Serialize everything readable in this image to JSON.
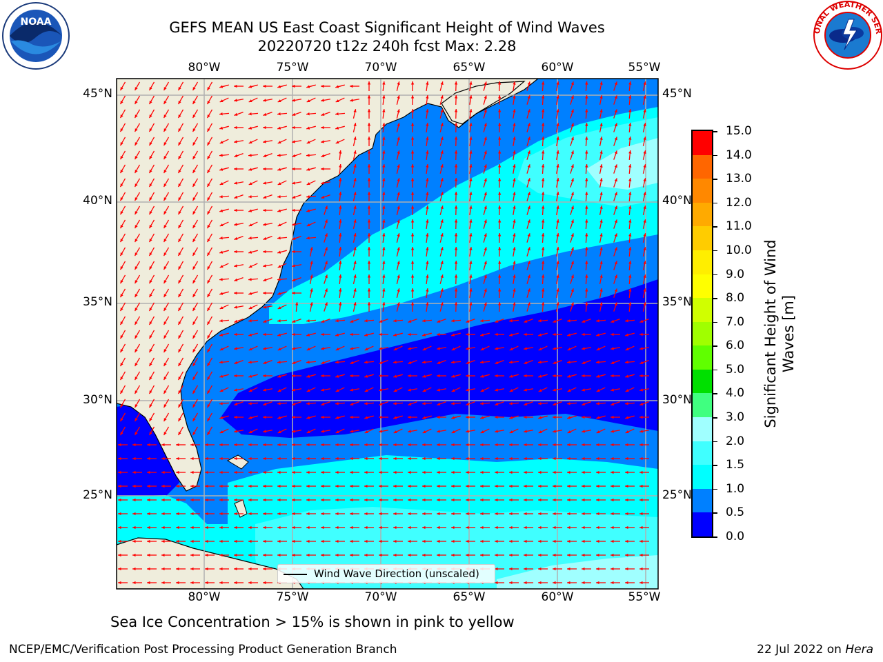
{
  "header": {
    "title_line1": "GEFS MEAN US East Coast Significant Height of Wind Waves",
    "title_line2": "20220720 t12z 240h fcst   Max: 2.28"
  },
  "logos": {
    "left": "noaa-logo",
    "left_text": "NOAA",
    "right": "nws-logo",
    "right_text": "NATIONAL WEATHER SERVICE"
  },
  "map": {
    "lon_labels": [
      "80°W",
      "75°W",
      "70°W",
      "65°W",
      "60°W",
      "55°W"
    ],
    "lat_labels": [
      "45°N",
      "40°N",
      "35°N",
      "30°N",
      "25°N"
    ],
    "lon_values": [
      -80,
      -75,
      -70,
      -65,
      -60,
      -55
    ],
    "lat_values": [
      45,
      40,
      35,
      30,
      25
    ],
    "extent": {
      "lon_min": -85,
      "lon_max": -54.3,
      "lat_min": 20.5,
      "lat_max": 45.8
    },
    "legend_label": "Wind Wave Direction (unscaled)",
    "arrow_color": "#ff0000",
    "land_color": "#efeddc",
    "grid_color": "#b0b0b0"
  },
  "colorbar": {
    "title": "Significant Height of Wind Waves [m]",
    "levels": [
      "0.0",
      "0.5",
      "1.0",
      "1.5",
      "2.0",
      "3.0",
      "4.0",
      "5.0",
      "6.0",
      "7.0",
      "8.0",
      "9.0",
      "10.0",
      "11.0",
      "12.0",
      "13.0",
      "14.0",
      "15.0"
    ],
    "colors": [
      "#0000ff",
      "#0080ff",
      "#00ffff",
      "#40ffff",
      "#a0ffff",
      "#40ff80",
      "#00e000",
      "#60ff00",
      "#a0ff00",
      "#d0ff00",
      "#ffff00",
      "#ffee00",
      "#ffcc00",
      "#ffaa00",
      "#ff8800",
      "#ff6600",
      "#ff0000"
    ]
  },
  "notes": {
    "sea_ice": "Sea Ice Concentration > 15% is shown in pink to yellow"
  },
  "footer": {
    "left": "NCEP/EMC/Verification Post Processing Product Generation Branch",
    "right_date": "22 Jul 2022 on",
    "right_host": "Hera"
  }
}
